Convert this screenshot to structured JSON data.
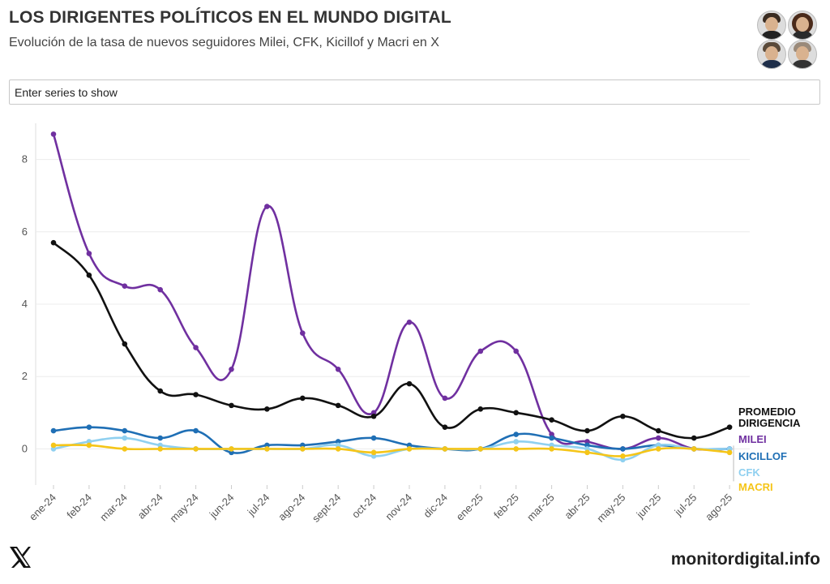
{
  "header": {
    "title": "LOS DIRIGENTES POLÍTICOS EN EL MUNDO DIGITAL",
    "subtitle": "Evolución de la tasa de nuevos seguidores Milei, CFK, Kicillof y Macri en X"
  },
  "search": {
    "placeholder": "Enter series to show"
  },
  "footer": {
    "site": "monitordigital.info",
    "logo_icon": "x-logo-icon"
  },
  "colors": {
    "promedio": "#111111",
    "milei": "#7030a0",
    "kicillof": "#1f6fb5",
    "cfk": "#8fd0f0",
    "macri": "#f5c518"
  },
  "chart_data": {
    "type": "line",
    "title": "LOS DIRIGENTES POLÍTICOS EN EL MUNDO DIGITAL",
    "subtitle": "Evolución de la tasa de nuevos seguidores Milei, CFK, Kicillof y Macri en X",
    "xlabel": "",
    "ylabel": "",
    "ylim": [
      -1,
      9
    ],
    "yticks": [
      0,
      2,
      4,
      6,
      8
    ],
    "grid": true,
    "legend": "end-of-line labels, right",
    "categories": [
      "ene-24",
      "feb-24",
      "mar-24",
      "abr-24",
      "may-24",
      "jun-24",
      "jul-24",
      "ago-24",
      "sept-24",
      "oct-24",
      "nov-24",
      "dic-24",
      "ene-25",
      "feb-25",
      "mar-25",
      "abr-25",
      "may-25",
      "jun-25",
      "jul-25",
      "ago-25"
    ],
    "series": [
      {
        "key": "milei",
        "name": "MILEI",
        "values": [
          8.7,
          5.4,
          4.5,
          4.4,
          2.8,
          2.2,
          6.7,
          3.2,
          2.2,
          1.0,
          3.5,
          1.4,
          2.7,
          2.7,
          0.4,
          0.2,
          0.0,
          0.3,
          0.0,
          0.0
        ]
      },
      {
        "key": "kicillof",
        "name": "KICILLOF",
        "values": [
          0.5,
          0.6,
          0.5,
          0.3,
          0.5,
          -0.1,
          0.1,
          0.1,
          0.2,
          0.3,
          0.1,
          0.0,
          0.0,
          0.4,
          0.3,
          0.1,
          0.0,
          0.1,
          0.0,
          0.0
        ]
      },
      {
        "key": "cfk",
        "name": "CFK",
        "values": [
          0.0,
          0.2,
          0.3,
          0.1,
          0.0,
          0.0,
          0.0,
          0.0,
          0.1,
          -0.2,
          0.0,
          0.0,
          0.0,
          0.2,
          0.1,
          0.0,
          -0.3,
          0.1,
          0.0,
          0.0
        ]
      },
      {
        "key": "macri",
        "name": "MACRI",
        "values": [
          0.1,
          0.1,
          0.0,
          0.0,
          0.0,
          0.0,
          0.0,
          0.0,
          0.0,
          -0.1,
          0.0,
          0.0,
          0.0,
          0.0,
          0.0,
          -0.1,
          -0.2,
          0.0,
          0.0,
          -0.1
        ]
      },
      {
        "key": "promedio",
        "name": "PROMEDIO DIRIGENCIA",
        "name_lines": [
          "PROMEDIO",
          "DIRIGENCIA"
        ],
        "values": [
          5.7,
          4.8,
          2.9,
          1.6,
          1.5,
          1.2,
          1.1,
          1.4,
          1.2,
          0.9,
          1.8,
          0.6,
          1.1,
          1.0,
          0.8,
          0.5,
          0.9,
          0.5,
          0.3,
          0.6
        ]
      }
    ]
  }
}
